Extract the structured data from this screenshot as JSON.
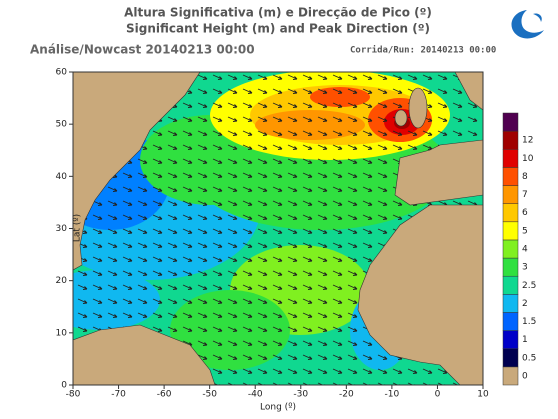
{
  "header": {
    "title_pt": "Altura Significativa (m) e Direcção de Pico (º)",
    "title_en": "Significant Height (m) and Peak Direction (º)",
    "analysis": "Análise/Nowcast  20140213 00:00",
    "run": "Corrida/Run: 20140213 00:00"
  },
  "map": {
    "xlabel": "Long (º)",
    "ylabel": "Lat (º)",
    "xticks": [
      -80,
      -70,
      -60,
      -50,
      -40,
      -30,
      -20,
      -10,
      0,
      10
    ],
    "yticks": [
      0,
      10,
      20,
      30,
      40,
      50,
      60
    ]
  },
  "colorbar": {
    "labels": [
      0,
      0.5,
      1,
      1.5,
      2,
      2.5,
      3,
      4,
      5,
      6,
      7,
      8,
      10,
      12
    ],
    "colors": [
      "#c9a97b",
      "#000050",
      "#0000c8",
      "#0064ff",
      "#10b8f0",
      "#10d890",
      "#30e040",
      "#80f020",
      "#ffff00",
      "#ffc800",
      "#ff9600",
      "#ff5000",
      "#e00000",
      "#a00000",
      "#500050"
    ]
  }
}
